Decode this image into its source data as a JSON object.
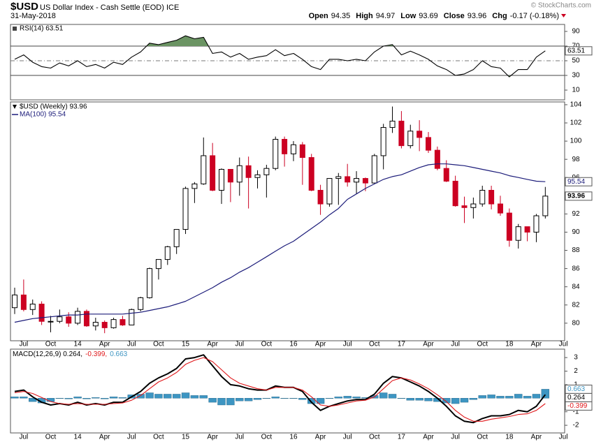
{
  "header": {
    "symbol": "$USD",
    "name": "US Dollar Index - Cash Settle (EOD) ICE",
    "date": "31-May-2018",
    "copyright": "© StockCharts.com",
    "quote": [
      {
        "label": "Open",
        "value": "94.35"
      },
      {
        "label": "High",
        "value": "94.97"
      },
      {
        "label": "Low",
        "value": "93.69"
      },
      {
        "label": "Close",
        "value": "93.96"
      },
      {
        "label": "Chg",
        "value": "-0.17 (-0.18%)"
      }
    ]
  },
  "chart_data": [
    {
      "type": "line",
      "legend": "RSI(14) 63.51",
      "series": [
        {
          "color": "#000000",
          "values": [
            52,
            58,
            48,
            42,
            40,
            47,
            43,
            50,
            42,
            45,
            40,
            48,
            45,
            55,
            62,
            74,
            72,
            75,
            78,
            84,
            80,
            82,
            60,
            62,
            55,
            60,
            52,
            55,
            57,
            65,
            57,
            60,
            52,
            42,
            38,
            52,
            52,
            50,
            52,
            50,
            62,
            70,
            72,
            58,
            63,
            58,
            52,
            43,
            38,
            30,
            32,
            38,
            50,
            42,
            40,
            28,
            38,
            38,
            55,
            63.51,
            null,
            null
          ]
        }
      ],
      "fill_color": "#6b9463",
      "ref_lines": [
        70,
        50,
        30
      ],
      "ylim": [
        -1.4,
        97.6
      ],
      "yticks": [
        10,
        30,
        50,
        70,
        90
      ]
    },
    {
      "type": "candlestick",
      "legend": "$USD (Weekly) 93.96",
      "categories": [
        null,
        "Jul",
        null,
        null,
        "Oct",
        null,
        null,
        "14",
        null,
        null,
        "Apr",
        null,
        null,
        "Jul",
        null,
        null,
        "Oct",
        null,
        null,
        "15",
        null,
        null,
        "Apr",
        null,
        null,
        "Jul",
        null,
        null,
        "Oct",
        null,
        null,
        "16",
        null,
        null,
        "Apr",
        null,
        null,
        "Jul",
        null,
        null,
        "Oct",
        null,
        null,
        "17",
        null,
        null,
        "Apr",
        null,
        null,
        "Jul",
        null,
        null,
        "Oct",
        null,
        null,
        "18",
        null,
        null,
        "Apr",
        null,
        null,
        "Jul"
      ],
      "open": [
        81.7,
        83.1,
        81.5,
        82.1,
        80.2,
        80.2,
        80.7,
        80.0,
        81.3,
        79.7,
        80.1,
        79.5,
        80.4,
        79.8,
        81.5,
        82.8,
        86.0,
        87.0,
        88.4,
        90.3,
        94.8,
        95.3,
        98.4,
        94.6,
        96.9,
        95.5,
        97.3,
        96.0,
        96.3,
        97.0,
        100.2,
        98.6,
        99.6,
        98.2,
        94.6,
        93.1,
        95.9,
        96.1,
        95.5,
        95.9,
        95.4,
        98.4,
        101.5,
        102.2,
        99.5,
        101.1,
        100.4,
        99.0,
        97.0,
        95.6,
        92.9,
        92.7,
        93.1,
        94.6,
        93.1,
        92.1,
        89.1,
        90.6,
        90.0,
        91.8,
        null,
        null
      ],
      "high": [
        83.9,
        84.8,
        82.6,
        82.4,
        80.8,
        81.5,
        81.2,
        81.7,
        81.5,
        80.6,
        80.3,
        80.6,
        80.8,
        81.6,
        82.9,
        86.1,
        87.0,
        88.5,
        90.3,
        95.0,
        95.5,
        100.4,
        99.8,
        97.0,
        96.9,
        98.2,
        98.3,
        96.8,
        97.4,
        100.5,
        100.5,
        100.0,
        99.9,
        98.6,
        95.2,
        95.9,
        96.5,
        97.5,
        96.7,
        96.0,
        98.6,
        101.9,
        103.8,
        103.3,
        101.8,
        102.3,
        101.0,
        99.4,
        97.9,
        96.2,
        93.9,
        93.8,
        95.1,
        95.1,
        94.0,
        92.6,
        90.9,
        90.6,
        92.0,
        94.97,
        null,
        null
      ],
      "low": [
        81.0,
        81.3,
        80.9,
        79.8,
        79.0,
        80.0,
        79.6,
        79.8,
        79.6,
        79.2,
        78.9,
        79.4,
        79.7,
        79.9,
        81.3,
        82.7,
        84.8,
        86.4,
        87.6,
        89.8,
        93.2,
        95.2,
        94.5,
        93.1,
        93.3,
        94.0,
        92.6,
        94.8,
        93.8,
        96.8,
        97.2,
        97.8,
        95.2,
        94.5,
        91.9,
        92.8,
        93.0,
        95.0,
        94.2,
        94.5,
        95.4,
        96.9,
        100.9,
        99.2,
        99.2,
        98.9,
        98.7,
        96.8,
        95.5,
        92.8,
        91.0,
        91.5,
        92.8,
        92.5,
        91.8,
        88.4,
        88.2,
        89.0,
        88.9,
        91.5,
        null,
        null
      ],
      "close": [
        83.1,
        81.5,
        82.1,
        80.2,
        80.2,
        80.7,
        80.0,
        81.3,
        79.7,
        80.1,
        79.5,
        80.4,
        79.8,
        81.5,
        82.8,
        86.0,
        87.0,
        88.4,
        90.3,
        94.8,
        95.3,
        98.4,
        94.6,
        96.9,
        95.5,
        97.3,
        96.0,
        96.3,
        97.0,
        100.2,
        98.6,
        99.6,
        98.2,
        94.6,
        93.1,
        95.9,
        96.1,
        95.5,
        95.9,
        95.4,
        98.4,
        101.5,
        102.2,
        99.5,
        101.1,
        100.4,
        99.0,
        97.0,
        95.6,
        92.9,
        92.7,
        93.1,
        94.6,
        93.1,
        92.1,
        89.1,
        90.6,
        90.0,
        91.8,
        93.96,
        null,
        null
      ],
      "up_color": "#000000",
      "down_color": "#cc0022",
      "overlays": [
        {
          "legend": "MA(100) 95.54",
          "color": "#1c1c7a",
          "values": [
            80.1,
            80.3,
            80.5,
            80.6,
            80.7,
            80.8,
            80.9,
            80.9,
            81.0,
            81.0,
            81.0,
            81.0,
            81.0,
            81.1,
            81.2,
            81.4,
            81.6,
            81.8,
            82.1,
            82.4,
            82.9,
            83.4,
            83.9,
            84.5,
            85.0,
            85.6,
            86.1,
            86.7,
            87.3,
            87.9,
            88.5,
            89.0,
            89.7,
            90.4,
            91.1,
            91.9,
            92.6,
            93.6,
            94.2,
            94.8,
            95.3,
            95.8,
            96.1,
            96.3,
            96.7,
            97.1,
            97.4,
            97.5,
            97.5,
            97.4,
            97.3,
            97.1,
            96.9,
            96.7,
            96.5,
            96.2,
            96.0,
            95.8,
            95.6,
            95.54,
            null,
            null
          ]
        }
      ],
      "ylim": [
        78.3,
        104.15
      ],
      "yticks": [
        80,
        82,
        84,
        86,
        88,
        90,
        92,
        94,
        96,
        98,
        100,
        102,
        104
      ]
    },
    {
      "type": "macd",
      "legend": [
        "MACD(12,26,9) 0.264,",
        "-0.399,",
        "0.663"
      ],
      "series": [
        {
          "kind": "line",
          "color": "#000000",
          "values": [
            0.5,
            0.6,
            0.1,
            -0.3,
            -0.5,
            -0.4,
            -0.5,
            -0.3,
            -0.5,
            -0.4,
            -0.5,
            -0.3,
            -0.3,
            0.1,
            0.5,
            1.1,
            1.5,
            1.8,
            2.2,
            2.9,
            3.0,
            3.2,
            2.4,
            1.6,
            1.0,
            0.9,
            0.7,
            0.6,
            0.6,
            0.9,
            0.8,
            0.8,
            0.5,
            -0.3,
            -0.9,
            -0.6,
            -0.4,
            -0.2,
            -0.1,
            -0.1,
            0.3,
            1.1,
            1.6,
            1.5,
            1.2,
            0.9,
            0.5,
            0.0,
            -0.6,
            -1.3,
            -1.7,
            -1.8,
            -1.5,
            -1.3,
            -1.3,
            -1.2,
            -0.9,
            -1.0,
            -0.6,
            0.264,
            null,
            null
          ]
        },
        {
          "kind": "line",
          "color": "#e0181b",
          "values": [
            0.4,
            0.5,
            0.35,
            0.05,
            -0.25,
            -0.4,
            -0.45,
            -0.4,
            -0.45,
            -0.45,
            -0.45,
            -0.4,
            -0.35,
            -0.15,
            0.2,
            0.7,
            1.2,
            1.5,
            1.9,
            2.5,
            2.8,
            3.0,
            2.7,
            2.1,
            1.5,
            1.1,
            0.9,
            0.7,
            0.6,
            0.8,
            0.8,
            0.8,
            0.6,
            0.1,
            -0.5,
            -0.6,
            -0.5,
            -0.35,
            -0.2,
            -0.15,
            0.1,
            0.7,
            1.3,
            1.5,
            1.35,
            1.05,
            0.7,
            0.25,
            -0.25,
            -0.9,
            -1.4,
            -1.7,
            -1.7,
            -1.55,
            -1.45,
            -1.35,
            -1.2,
            -1.15,
            -0.9,
            -0.399,
            null,
            null
          ]
        },
        {
          "kind": "bar",
          "color": "#3d95c2",
          "values": [
            0.1,
            0.1,
            -0.25,
            -0.35,
            -0.25,
            0,
            -0.05,
            0.1,
            -0.05,
            0.05,
            -0.05,
            0.1,
            0.05,
            0.25,
            0.3,
            0.4,
            0.3,
            0.3,
            0.3,
            0.4,
            0.2,
            0.2,
            -0.3,
            -0.5,
            -0.5,
            -0.2,
            -0.2,
            -0.1,
            0,
            0.1,
            0,
            0,
            -0.1,
            -0.4,
            -0.4,
            0,
            0.1,
            0.15,
            0.1,
            0.05,
            0.2,
            0.4,
            0.3,
            0,
            -0.15,
            -0.15,
            -0.2,
            -0.25,
            -0.35,
            -0.4,
            -0.3,
            -0.1,
            0.2,
            0.25,
            0.15,
            0.15,
            0.3,
            0.15,
            0.3,
            0.663,
            null,
            null
          ]
        }
      ],
      "ylim": [
        -2.46,
        3.52
      ],
      "yticks": [
        -2,
        -1,
        0,
        1,
        2,
        3
      ]
    }
  ]
}
